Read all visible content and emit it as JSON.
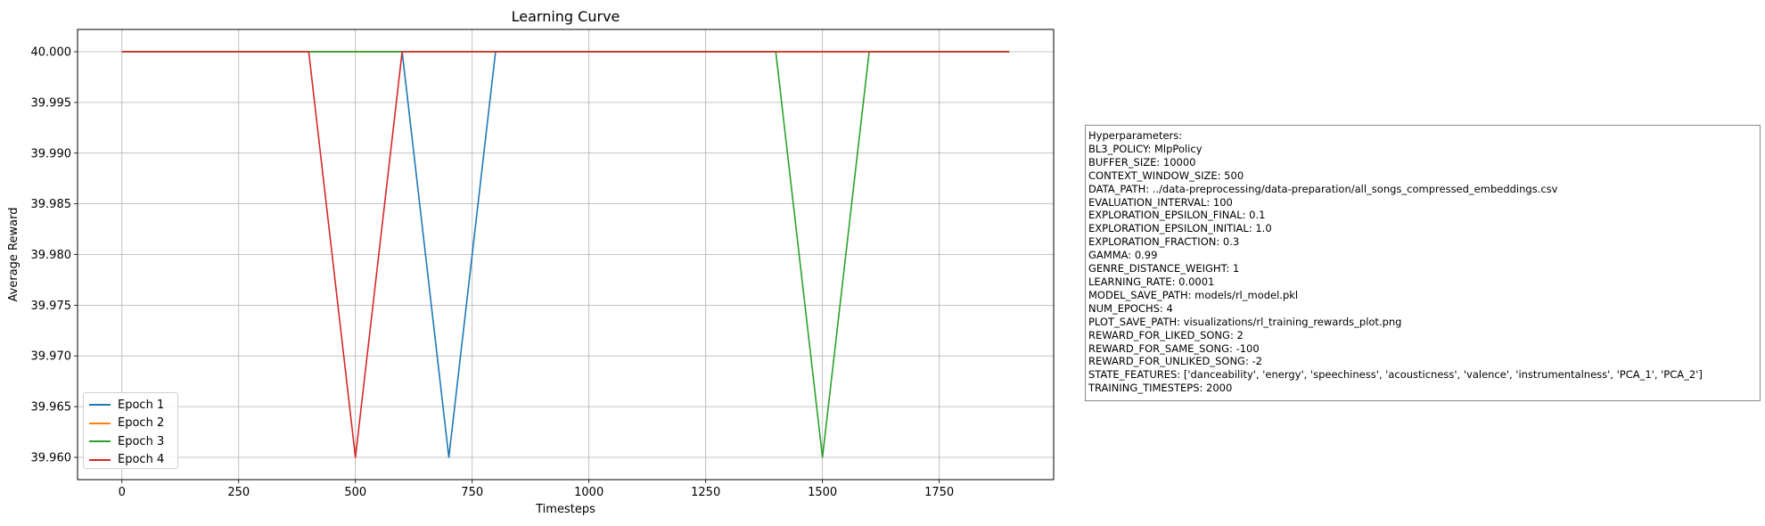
{
  "chart_data": {
    "type": "line",
    "title": "Learning Curve",
    "xlabel": "Timesteps",
    "ylabel": "Average Reward",
    "xlim": [
      -95,
      1995
    ],
    "ylim": [
      39.9578,
      40.0022
    ],
    "xticks": [
      0,
      250,
      500,
      750,
      1000,
      1250,
      1500,
      1750
    ],
    "xtick_labels": [
      "0",
      "250",
      "500",
      "750",
      "1000",
      "1250",
      "1500",
      "1750"
    ],
    "yticks": [
      39.96,
      39.965,
      39.97,
      39.975,
      39.98,
      39.985,
      39.99,
      39.995,
      40.0
    ],
    "ytick_labels": [
      "39.960",
      "39.965",
      "39.970",
      "39.975",
      "39.980",
      "39.985",
      "39.990",
      "39.995",
      "40.000"
    ],
    "grid": true,
    "legend_position": "lower-left",
    "x": [
      0,
      100,
      200,
      300,
      400,
      500,
      600,
      700,
      800,
      900,
      1000,
      1100,
      1200,
      1300,
      1400,
      1500,
      1600,
      1700,
      1800,
      1900
    ],
    "series": [
      {
        "name": "Epoch 1",
        "color": "#1f77b4",
        "values": [
          40.0,
          40.0,
          40.0,
          40.0,
          40.0,
          40.0,
          40.0,
          39.96,
          40.0,
          40.0,
          40.0,
          40.0,
          40.0,
          40.0,
          40.0,
          40.0,
          40.0,
          40.0,
          40.0,
          40.0
        ]
      },
      {
        "name": "Epoch 2",
        "color": "#ff7f0e",
        "values": [
          40.0,
          40.0,
          40.0,
          40.0,
          40.0,
          40.0,
          40.0,
          40.0,
          40.0,
          40.0,
          40.0,
          40.0,
          40.0,
          40.0,
          40.0,
          40.0,
          40.0,
          40.0,
          40.0,
          40.0
        ]
      },
      {
        "name": "Epoch 3",
        "color": "#2ca02c",
        "values": [
          40.0,
          40.0,
          40.0,
          40.0,
          40.0,
          40.0,
          40.0,
          40.0,
          40.0,
          40.0,
          40.0,
          40.0,
          40.0,
          40.0,
          40.0,
          39.96,
          40.0,
          40.0,
          40.0,
          40.0
        ]
      },
      {
        "name": "Epoch 4",
        "color": "#d62728",
        "values": [
          40.0,
          40.0,
          40.0,
          40.0,
          40.0,
          39.96,
          40.0,
          40.0,
          40.0,
          40.0,
          40.0,
          40.0,
          40.0,
          40.0,
          40.0,
          40.0,
          40.0,
          40.0,
          40.0,
          40.0
        ]
      }
    ]
  },
  "hyperparameters": {
    "lines": [
      "Hyperparameters:",
      "BL3_POLICY: MlpPolicy",
      "BUFFER_SIZE: 10000",
      "CONTEXT_WINDOW_SIZE: 500",
      "DATA_PATH: ../data-preprocessing/data-preparation/all_songs_compressed_embeddings.csv",
      "EVALUATION_INTERVAL: 100",
      "EXPLORATION_EPSILON_FINAL: 0.1",
      "EXPLORATION_EPSILON_INITIAL: 1.0",
      "EXPLORATION_FRACTION: 0.3",
      "GAMMA: 0.99",
      "GENRE_DISTANCE_WEIGHT: 1",
      "LEARNING_RATE: 0.0001",
      "MODEL_SAVE_PATH: models/rl_model.pkl",
      "NUM_EPOCHS: 4",
      "PLOT_SAVE_PATH: visualizations/rl_training_rewards_plot.png",
      "REWARD_FOR_LIKED_SONG: 2",
      "REWARD_FOR_SAME_SONG: -100",
      "REWARD_FOR_UNLIKED_SONG: -2",
      "STATE_FEATURES: ['danceability', 'energy', 'speechiness', 'acousticness', 'valence', 'instrumentalness', 'PCA_1', 'PCA_2']",
      "TRAINING_TIMESTEPS: 2000"
    ]
  }
}
